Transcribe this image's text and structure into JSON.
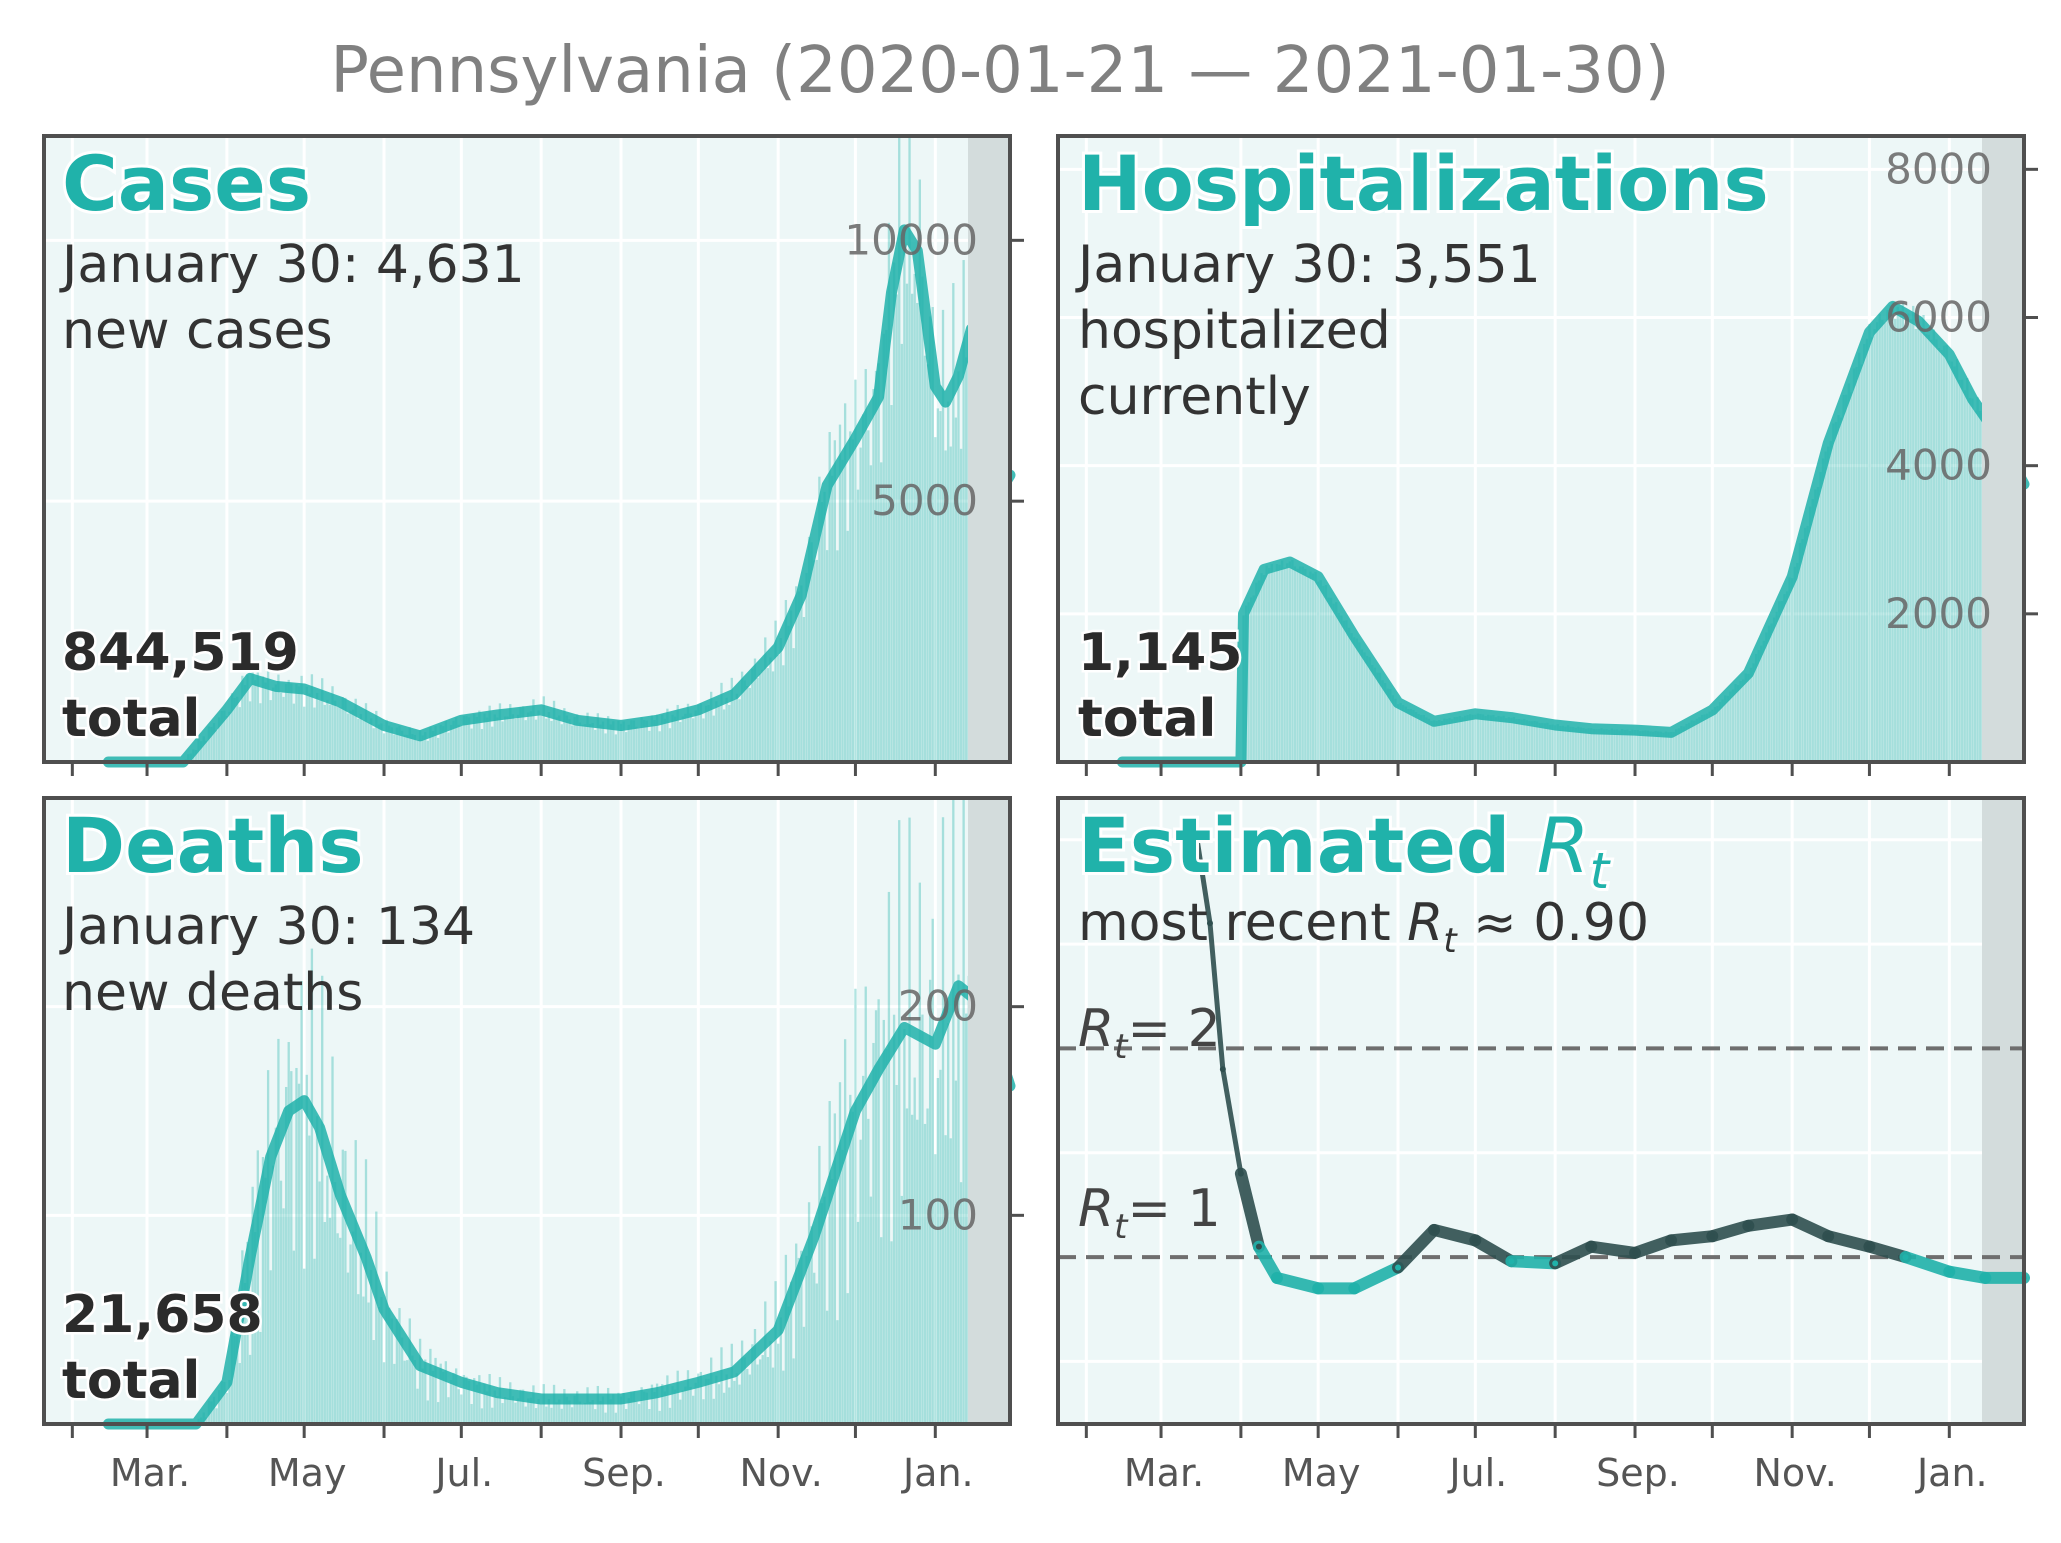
{
  "title": "Pennsylvania (2020-01-21 — 2021-01-30)",
  "colors": {
    "accent": "#20b2aa",
    "bg": "#edf7f7",
    "recent_shade": "#d3dcdc",
    "rt_dark": "#2f4f4f"
  },
  "panels": {
    "cases": {
      "title": "Cases",
      "line1": "January 30: 4,631",
      "line2": "new cases",
      "total1": "844,519",
      "total2": "total"
    },
    "hosp": {
      "title": "Hospitalizations",
      "line1": "January 30: 3,551",
      "line2": "hospitalized",
      "line3": "currently",
      "total1": "1,145",
      "total2": "total"
    },
    "deaths": {
      "title": "Deaths",
      "line1": "January 30: 134",
      "line2": "new deaths",
      "total1": "21,658",
      "total2": "total"
    },
    "rt": {
      "title_main": "Estimated ",
      "title_r": "R",
      "title_sub": "t",
      "recent_prefix": "most recent ",
      "recent_r": "R",
      "recent_sub": "t",
      "recent_val": " ≈ 0.90",
      "ref2": "= 2",
      "ref1": "= 1"
    }
  },
  "x_months": [
    "Mar.",
    "May",
    "Jul.",
    "Sep.",
    "Nov.",
    "Jan."
  ],
  "chart_data": [
    {
      "type": "line",
      "name": "cases",
      "xlabel": "",
      "ylabel": "",
      "y_ticks": [
        "5000",
        "10000"
      ],
      "ylim": [
        0,
        12000
      ],
      "grid": true,
      "x_start": "2020-01-21",
      "x_end": "2021-01-30",
      "x": [
        "2020-02-15",
        "2020-03-15",
        "2020-04-01",
        "2020-04-10",
        "2020-04-20",
        "2020-05-01",
        "2020-05-15",
        "2020-06-01",
        "2020-06-15",
        "2020-07-01",
        "2020-07-15",
        "2020-08-01",
        "2020-08-15",
        "2020-09-01",
        "2020-09-15",
        "2020-10-01",
        "2020-10-15",
        "2020-11-01",
        "2020-11-10",
        "2020-11-20",
        "2020-12-01",
        "2020-12-10",
        "2020-12-15",
        "2020-12-20",
        "2020-12-25",
        "2021-01-01",
        "2021-01-05",
        "2021-01-10",
        "2021-01-15",
        "2021-01-20",
        "2021-01-25",
        "2021-01-30"
      ],
      "y": [
        0,
        0,
        1000,
        1600,
        1450,
        1400,
        1150,
        700,
        500,
        800,
        900,
        1000,
        800,
        700,
        800,
        1000,
        1300,
        2200,
        3200,
        5300,
        6200,
        7000,
        9000,
        10200,
        9800,
        7200,
        6900,
        7400,
        8300,
        6700,
        5100,
        5500
      ]
    },
    {
      "type": "line",
      "name": "hospitalizations",
      "xlabel": "",
      "ylabel": "",
      "y_ticks": [
        "2000",
        "4000",
        "6000",
        "8000"
      ],
      "ylim": [
        0,
        8450
      ],
      "grid": true,
      "x_start": "2020-01-21",
      "x_end": "2021-01-30",
      "x": [
        "2020-02-15",
        "2020-04-01",
        "2020-04-02",
        "2020-04-10",
        "2020-04-20",
        "2020-05-01",
        "2020-05-15",
        "2020-06-01",
        "2020-06-15",
        "2020-07-01",
        "2020-07-15",
        "2020-08-01",
        "2020-08-15",
        "2020-09-01",
        "2020-09-15",
        "2020-10-01",
        "2020-10-15",
        "2020-11-01",
        "2020-11-15",
        "2020-12-01",
        "2020-12-10",
        "2020-12-15",
        "2020-12-20",
        "2021-01-01",
        "2021-01-10",
        "2021-01-20",
        "2021-01-30"
      ],
      "y": [
        0,
        0,
        2000,
        2600,
        2700,
        2500,
        1700,
        800,
        550,
        650,
        600,
        500,
        450,
        430,
        400,
        700,
        1200,
        2500,
        4300,
        5800,
        6150,
        6050,
        5950,
        5500,
        4900,
        4400,
        3750
      ]
    },
    {
      "type": "line",
      "name": "deaths",
      "xlabel": "",
      "ylabel": "",
      "y_ticks": [
        "100",
        "200"
      ],
      "ylim": [
        0,
        300
      ],
      "grid": true,
      "x_start": "2020-01-21",
      "x_end": "2021-01-30",
      "x": [
        "2020-02-15",
        "2020-03-20",
        "2020-04-01",
        "2020-04-10",
        "2020-04-18",
        "2020-04-25",
        "2020-05-01",
        "2020-05-07",
        "2020-05-15",
        "2020-05-25",
        "2020-06-01",
        "2020-06-15",
        "2020-07-01",
        "2020-07-15",
        "2020-08-01",
        "2020-08-15",
        "2020-09-01",
        "2020-09-15",
        "2020-10-01",
        "2020-10-15",
        "2020-11-01",
        "2020-11-15",
        "2020-12-01",
        "2020-12-10",
        "2020-12-20",
        "2021-01-01",
        "2021-01-10",
        "2021-01-20",
        "2021-01-30"
      ],
      "y": [
        0,
        0,
        20,
        80,
        128,
        150,
        155,
        142,
        110,
        80,
        55,
        28,
        20,
        15,
        12,
        12,
        12,
        15,
        20,
        25,
        45,
        90,
        150,
        170,
        190,
        182,
        210,
        200,
        162
      ]
    },
    {
      "type": "line",
      "name": "Rt",
      "xlabel": "",
      "ylabel": "",
      "y_ticks": [],
      "ylim": [
        0.2,
        3.2
      ],
      "grid": true,
      "reference_lines": [
        1,
        2
      ],
      "x_start": "2020-01-21",
      "x_end": "2021-01-30",
      "x": [
        "2020-03-15",
        "2020-03-20",
        "2020-03-25",
        "2020-04-01",
        "2020-04-08",
        "2020-04-15",
        "2020-05-01",
        "2020-05-15",
        "2020-06-01",
        "2020-06-15",
        "2020-07-01",
        "2020-07-15",
        "2020-08-01",
        "2020-08-15",
        "2020-09-01",
        "2020-09-15",
        "2020-10-01",
        "2020-10-15",
        "2020-11-01",
        "2020-11-15",
        "2020-12-01",
        "2020-12-15",
        "2021-01-01",
        "2021-01-15",
        "2021-01-30"
      ],
      "y": [
        3.0,
        2.6,
        1.9,
        1.4,
        1.05,
        0.9,
        0.85,
        0.85,
        0.95,
        1.13,
        1.08,
        0.98,
        0.97,
        1.05,
        1.02,
        1.08,
        1.1,
        1.15,
        1.18,
        1.1,
        1.05,
        1.0,
        0.93,
        0.9,
        0.9
      ]
    }
  ]
}
